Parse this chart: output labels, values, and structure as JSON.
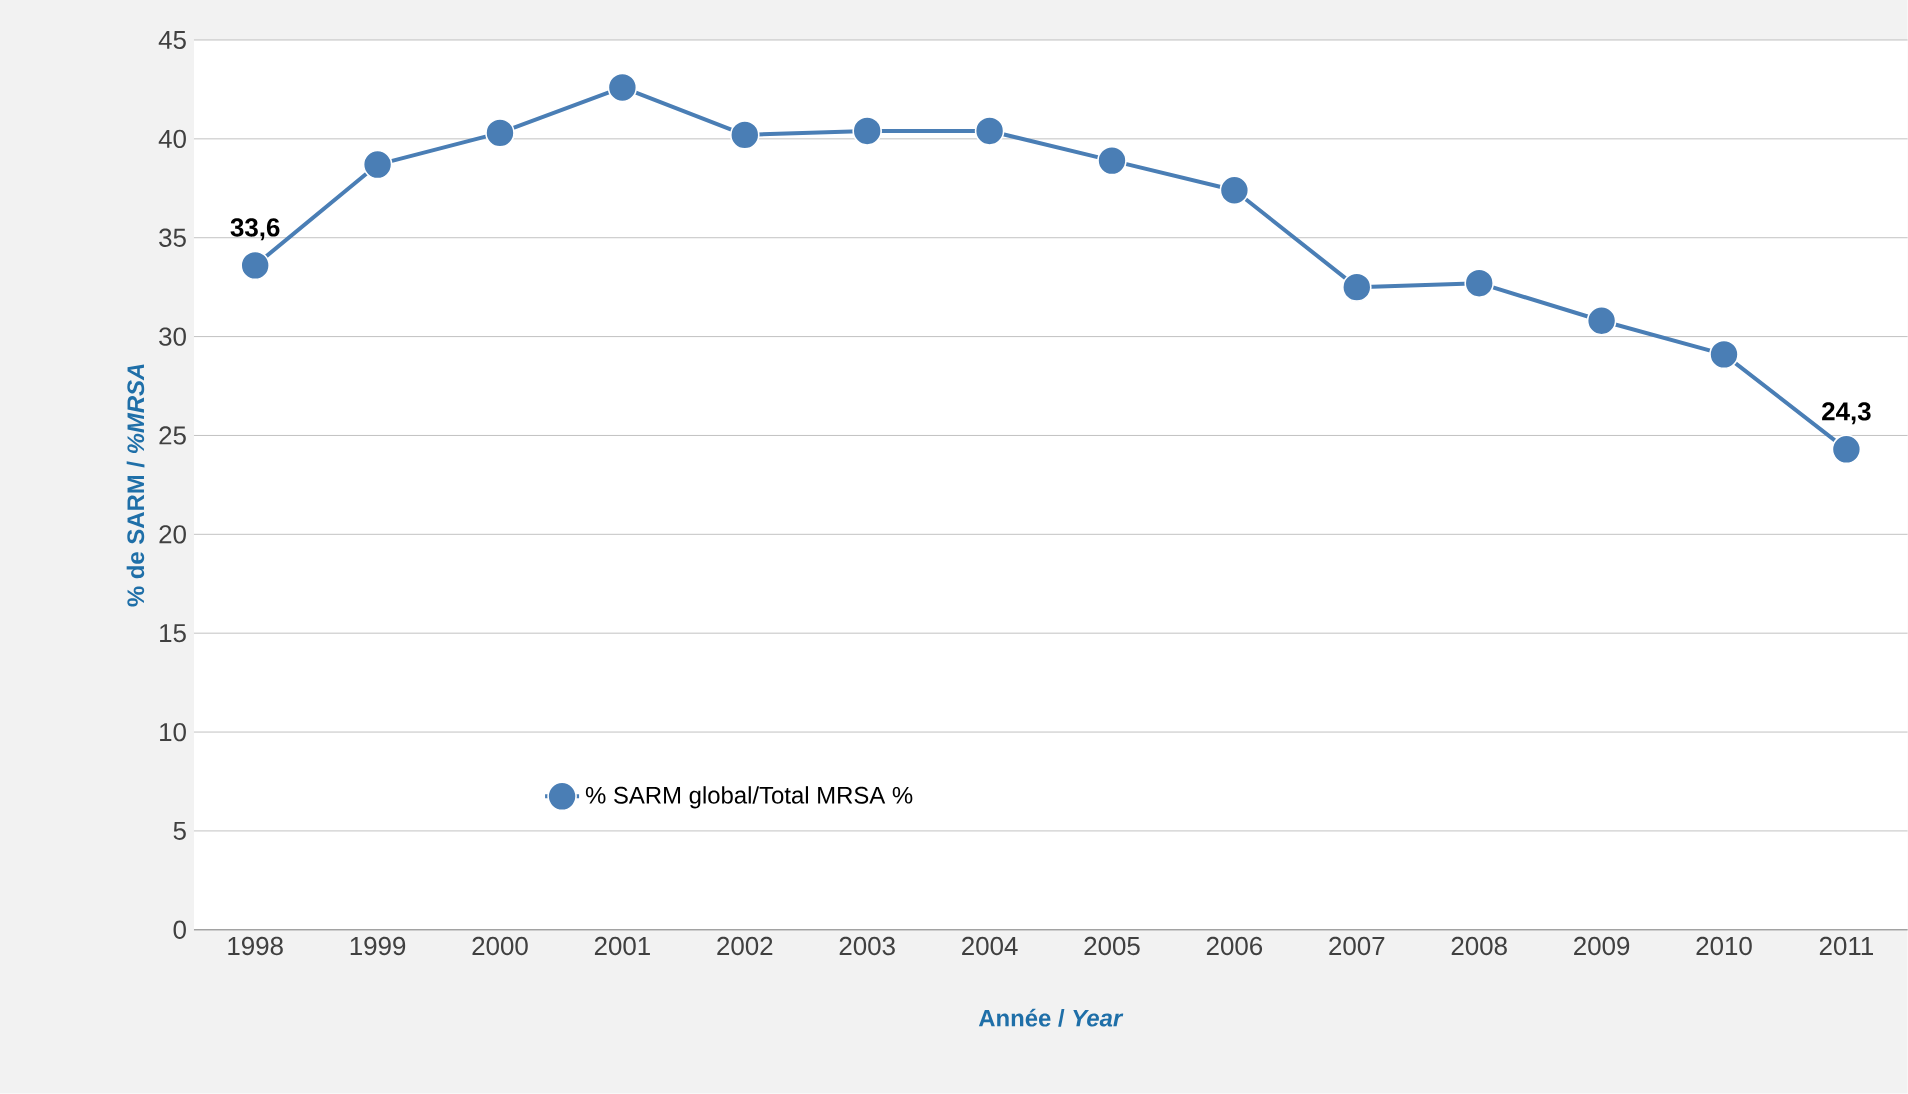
{
  "chart_data": {
    "type": "line",
    "xlabel": "Année / *Year*",
    "ylabel": "% de SARM / *%MRSA*",
    "categories": [
      "1998",
      "1999",
      "2000",
      "2001",
      "2002",
      "2003",
      "2004",
      "2005",
      "2006",
      "2007",
      "2008",
      "2009",
      "2010",
      "2011"
    ],
    "series": [
      {
        "name": "% SARM global/Total MRSA %",
        "color": "#4a7eb5",
        "values": [
          33.6,
          38.7,
          40.3,
          42.6,
          40.2,
          40.4,
          40.4,
          38.9,
          37.4,
          32.5,
          32.7,
          30.8,
          29.1,
          24.3
        ],
        "value_labels": [
          "33,6",
          null,
          null,
          null,
          null,
          null,
          null,
          null,
          null,
          null,
          null,
          null,
          null,
          "24,3"
        ]
      }
    ],
    "ylim": [
      0,
      45
    ],
    "yticks": [
      0,
      5,
      10,
      15,
      20,
      25,
      30,
      35,
      40,
      45
    ],
    "grid": "y",
    "legend": "bottom left",
    "marker": "circle",
    "line_style": "solid"
  }
}
